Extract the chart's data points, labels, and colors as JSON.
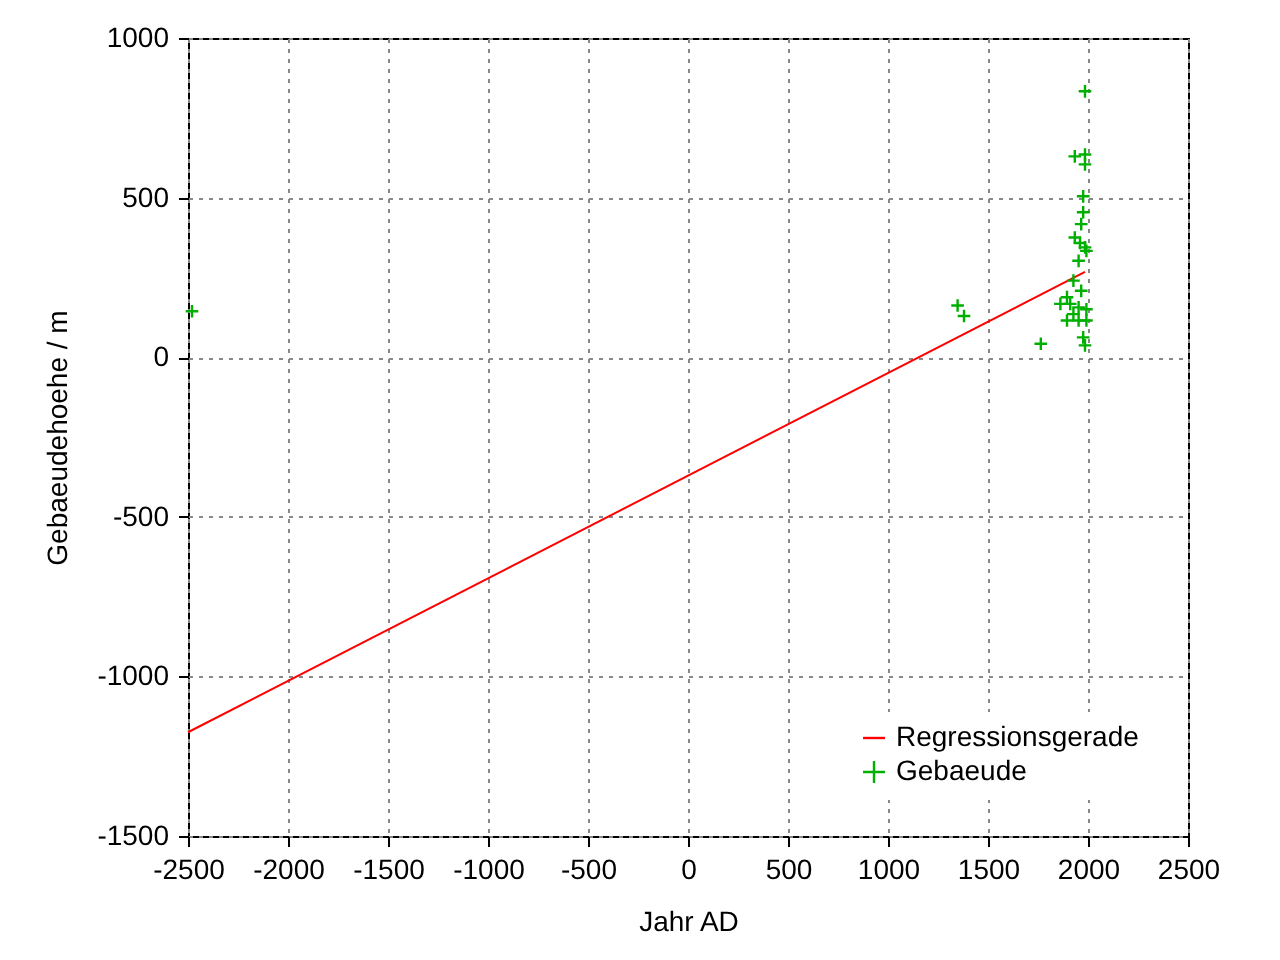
{
  "chart_data": {
    "type": "scatter",
    "xlabel": "Jahr AD",
    "ylabel": "Gebaeudehoehe / m",
    "xlim": [
      -2500,
      2500
    ],
    "ylim": [
      -1500,
      1000
    ],
    "xticks": [
      -2500,
      -2000,
      -1500,
      -1000,
      -500,
      0,
      500,
      1000,
      1500,
      2000,
      2500
    ],
    "yticks": [
      -1500,
      -1000,
      -500,
      0,
      500,
      1000
    ],
    "grid": true,
    "legend": "bottom right",
    "series": [
      {
        "name": "Regressionsgerade",
        "type": "line",
        "color": "#ff0000",
        "x": [
          -2500,
          1985
        ],
        "values": [
          -1175,
          267
        ]
      },
      {
        "name": "Gebaeude",
        "marker": "cross",
        "color": "#00b000",
        "x": [
          -2480,
          1348,
          1380,
          1764,
          1985,
          1934,
          1985,
          1985,
          1976,
          1976,
          1966,
          1934,
          1960,
          1985,
          1992,
          1953,
          1927,
          1966,
          1895,
          1862,
          1911,
          1953,
          1992,
          1927,
          1895,
          1953,
          1992,
          1976,
          1985
        ],
        "values": [
          144,
          162,
          129,
          42,
          833,
          629,
          635,
          604,
          504,
          454,
          417,
          375,
          358,
          344,
          333,
          302,
          240,
          208,
          188,
          167,
          167,
          156,
          150,
          135,
          115,
          115,
          115,
          62,
          37
        ]
      }
    ]
  }
}
